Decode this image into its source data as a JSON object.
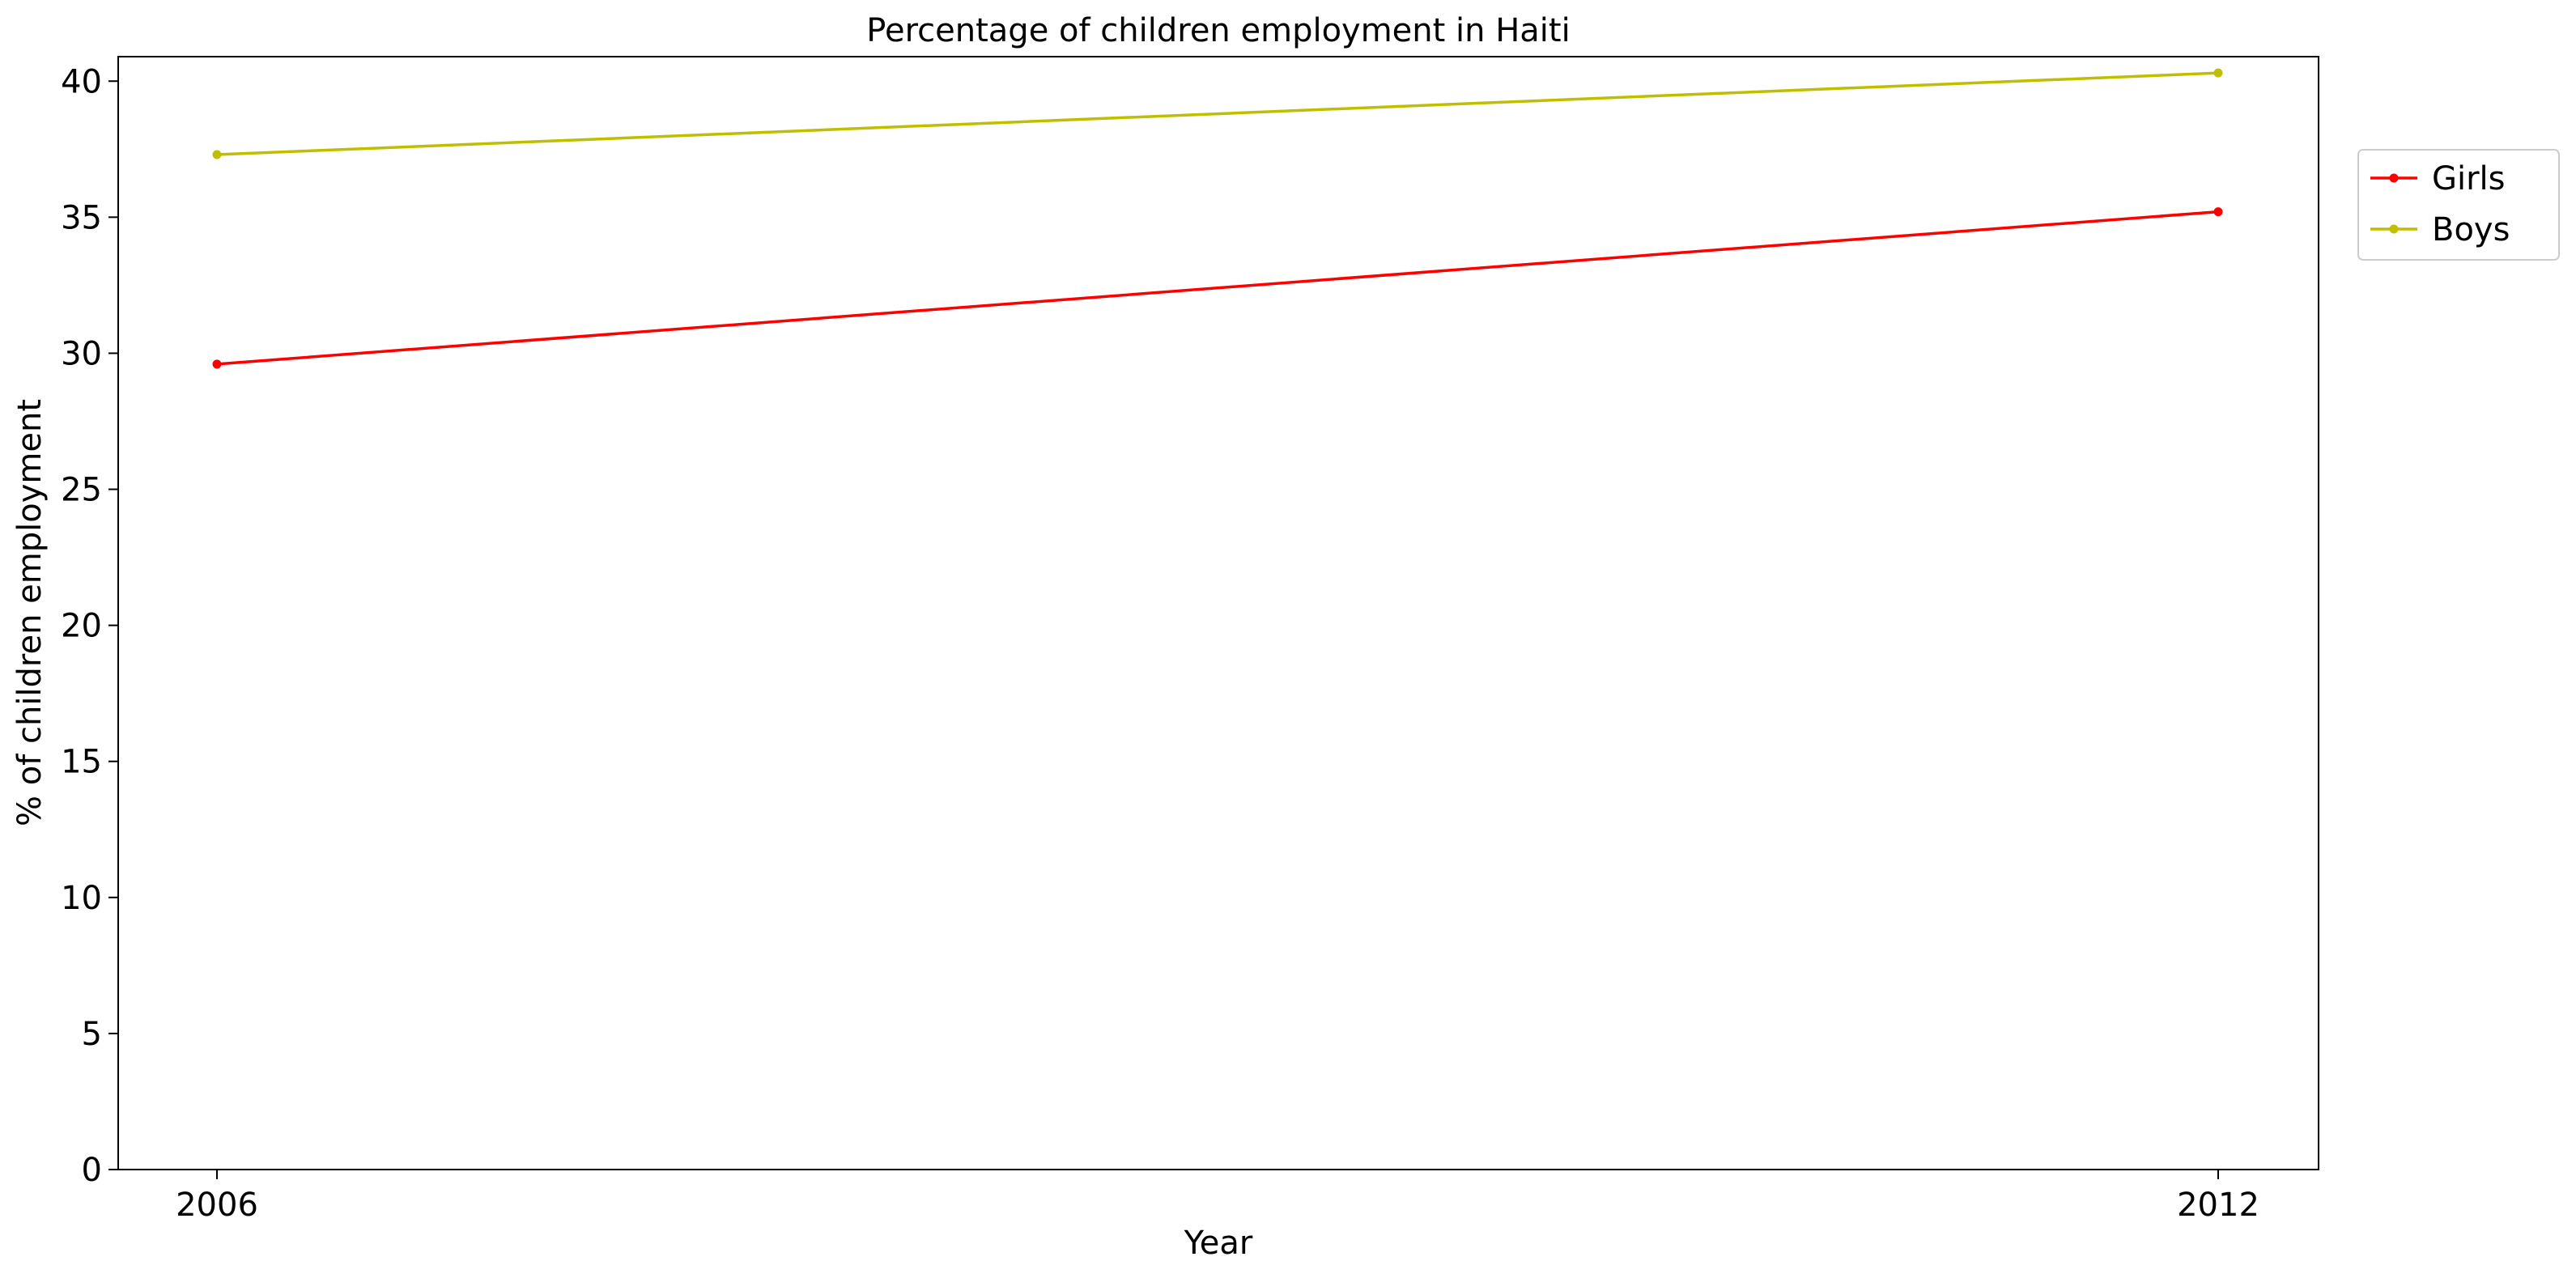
{
  "chart_data": {
    "type": "line",
    "title": "Percentage of children employment in Haiti",
    "xlabel": "Year",
    "ylabel": "% of children employment",
    "x": [
      "2006",
      "2012"
    ],
    "ylim": [
      0,
      40.9
    ],
    "yticks": [
      "0",
      "5",
      "10",
      "15",
      "20",
      "25",
      "30",
      "35",
      "40"
    ],
    "grid": false,
    "legend_position": "top-right, outside plot",
    "series": [
      {
        "name": "Girls",
        "values": [
          29.6,
          35.2
        ],
        "color": "#ff0000"
      },
      {
        "name": "Boys",
        "values": [
          37.3,
          40.3
        ],
        "color": "#bfbf00"
      }
    ]
  }
}
